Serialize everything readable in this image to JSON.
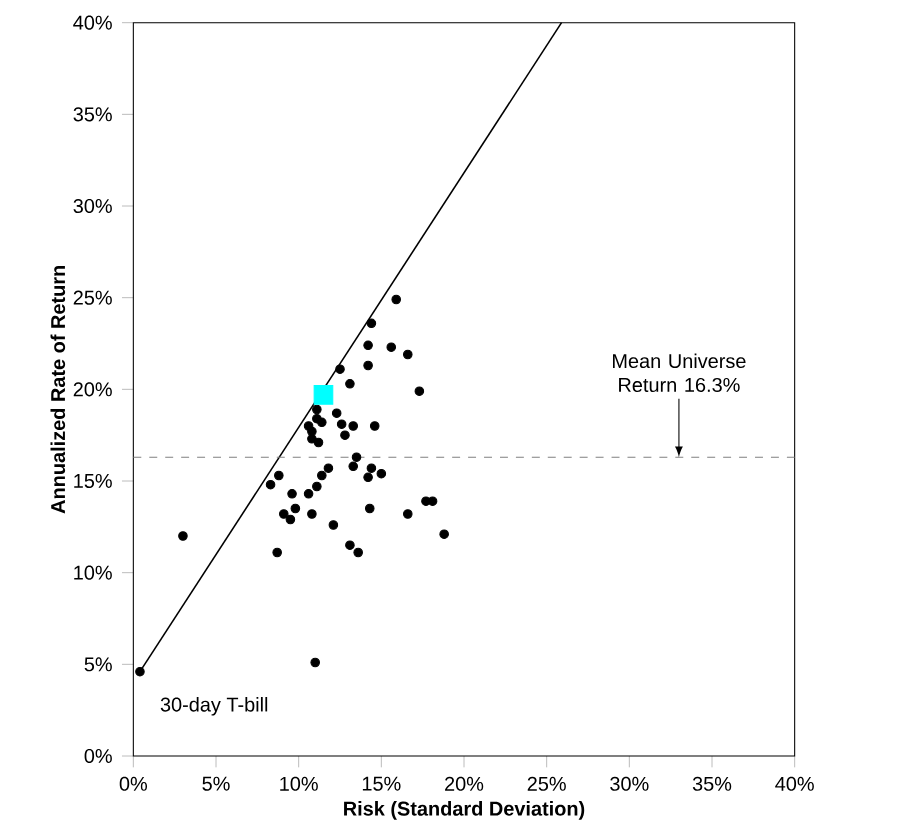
{
  "chart_data": {
    "type": "scatter",
    "xlabel": "Risk (Standard Deviation)",
    "ylabel": "Annualized Rate of Return",
    "xlim": [
      0,
      40
    ],
    "ylim": [
      0,
      40
    ],
    "xticks": [
      {
        "value": 0,
        "label": "0%"
      },
      {
        "value": 5,
        "label": "5%"
      },
      {
        "value": 10,
        "label": "10%"
      },
      {
        "value": 15,
        "label": "15%"
      },
      {
        "value": 20,
        "label": "20%"
      },
      {
        "value": 25,
        "label": "25%"
      },
      {
        "value": 30,
        "label": "30%"
      },
      {
        "value": 35,
        "label": "35%"
      },
      {
        "value": 40,
        "label": "40%"
      }
    ],
    "yticks": [
      {
        "value": 0,
        "label": "0%"
      },
      {
        "value": 5,
        "label": "5%"
      },
      {
        "value": 10,
        "label": "10%"
      },
      {
        "value": 15,
        "label": "15%"
      },
      {
        "value": 20,
        "label": "20%"
      },
      {
        "value": 25,
        "label": "25%"
      },
      {
        "value": 30,
        "label": "30%"
      },
      {
        "value": 35,
        "label": "35%"
      },
      {
        "value": 40,
        "label": "40%"
      }
    ],
    "grid": false,
    "series": [
      {
        "type": "line",
        "color": "#000000",
        "marker": "none",
        "line_style": "solid",
        "x": [
          0.4,
          25.9
        ],
        "values": [
          4.6,
          40
        ]
      },
      {
        "color": "#000000",
        "marker": "circle",
        "x": [
          15.9,
          14.4,
          14.2,
          15.6,
          16.6,
          14.2,
          12.5,
          13.1,
          17.3,
          11.1,
          12.3,
          11.1,
          11.4,
          10.6,
          12.6,
          13.3,
          14.6,
          10.8,
          12.8,
          10.8,
          11.2,
          13.5,
          13.3,
          14.4,
          15.0,
          11.8,
          8.8,
          8.3,
          11.4,
          14.2,
          9.6,
          10.6,
          11.1,
          17.7,
          18.1,
          9.1,
          9.8,
          10.8,
          12.1,
          14.3,
          16.6,
          3.0,
          9.5,
          8.7,
          13.1,
          13.6,
          11.0,
          0.4,
          18.8
        ],
        "values": [
          24.9,
          23.6,
          22.4,
          22.3,
          21.9,
          21.3,
          21.1,
          20.3,
          19.9,
          18.9,
          18.7,
          18.4,
          18.2,
          18.0,
          18.1,
          18.0,
          18.0,
          17.7,
          17.5,
          17.3,
          17.1,
          16.3,
          15.8,
          15.7,
          15.4,
          15.7,
          15.3,
          14.8,
          15.3,
          15.2,
          14.3,
          14.3,
          14.7,
          13.9,
          13.9,
          13.2,
          13.5,
          13.2,
          12.6,
          13.5,
          13.2,
          12.0,
          12.9,
          11.1,
          11.5,
          11.1,
          5.1,
          4.6,
          12.1
        ]
      },
      {
        "color": "#00ffff",
        "marker": "square",
        "x": [
          11.5
        ],
        "values": [
          19.7
        ]
      }
    ],
    "ref_lines": [
      {
        "axis": "y",
        "value": 16.3,
        "label": "Mean Universe Return 16.3%",
        "color": "#808080",
        "line_style": "dashed"
      }
    ],
    "annotations": [
      {
        "text": "30-day T-bill",
        "x": 0.4,
        "y": 4.6
      }
    ]
  }
}
